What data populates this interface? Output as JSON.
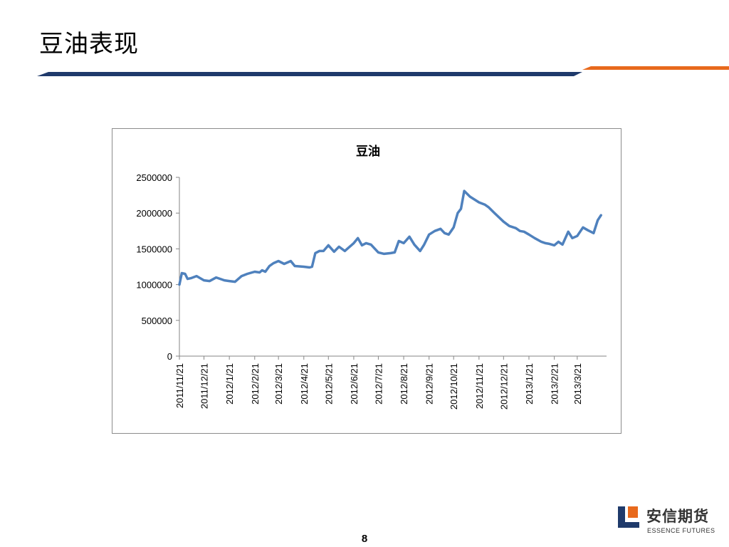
{
  "slide": {
    "title": "豆油表现",
    "page_number": "8",
    "colors": {
      "navy": "#1f3a6b",
      "orange": "#e8691c",
      "series": "#4f81bd"
    }
  },
  "logo": {
    "name": "安信期货",
    "subtitle": "ESSENCE FUTURES"
  },
  "chart_data": {
    "type": "line",
    "title": "豆油",
    "xlabel": "",
    "ylabel": "",
    "ylim": [
      0,
      2500000
    ],
    "y_ticks": [
      "0",
      "500000",
      "1000000",
      "1500000",
      "2000000",
      "2500000"
    ],
    "x_ticks": [
      "2011/11/21",
      "2011/12/21",
      "2012/1/21",
      "2012/2/21",
      "2012/3/21",
      "2012/4/21",
      "2012/5/21",
      "2012/6/21",
      "2012/7/21",
      "2012/8/21",
      "2012/9/21",
      "2012/10/21",
      "2012/11/21",
      "2012/12/21",
      "2013/1/21",
      "2013/2/21",
      "2013/3/21"
    ],
    "grid": false,
    "legend": "none",
    "series": [
      {
        "color": "#4f81bd",
        "x": [
          "2011/11/21",
          "2011/11/24",
          "2011/11/28",
          "2011/12/1",
          "2011/12/5",
          "2011/12/12",
          "2011/12/21",
          "2011/12/28",
          "2012/1/5",
          "2012/1/10",
          "2012/1/15",
          "2012/1/21",
          "2012/1/28",
          "2012/2/5",
          "2012/2/12",
          "2012/2/21",
          "2012/2/27",
          "2012/3/1",
          "2012/3/5",
          "2012/3/10",
          "2012/3/15",
          "2012/3/21",
          "2012/3/28",
          "2012/4/5",
          "2012/4/10",
          "2012/4/21",
          "2012/4/28",
          "2012/5/1",
          "2012/5/5",
          "2012/5/10",
          "2012/5/15",
          "2012/5/21",
          "2012/5/28",
          "2012/6/3",
          "2012/6/10",
          "2012/6/15",
          "2012/6/21",
          "2012/6/26",
          "2012/7/1",
          "2012/7/6",
          "2012/7/12",
          "2012/7/21",
          "2012/7/28",
          "2012/8/5",
          "2012/8/10",
          "2012/8/15",
          "2012/8/21",
          "2012/8/28",
          "2012/9/3",
          "2012/9/10",
          "2012/9/15",
          "2012/9/21",
          "2012/9/28",
          "2012/10/5",
          "2012/10/10",
          "2012/10/15",
          "2012/10/21",
          "2012/10/26",
          "2012/10/30",
          "2012/11/3",
          "2012/11/10",
          "2012/11/21",
          "2012/11/28",
          "2012/12/3",
          "2012/12/10",
          "2012/12/21",
          "2012/12/28",
          "2013/1/5",
          "2013/1/10",
          "2013/1/15",
          "2013/1/21",
          "2013/1/28",
          "2013/2/5",
          "2013/2/10",
          "2013/2/15",
          "2013/2/21",
          "2013/2/26",
          "2013/3/3",
          "2013/3/10",
          "2013/3/15",
          "2013/3/21",
          "2013/3/28",
          "2013/4/3",
          "2013/4/10",
          "2013/4/15",
          "2013/4/19"
        ],
        "values": [
          1000000,
          1160000,
          1150000,
          1080000,
          1090000,
          1120000,
          1060000,
          1050000,
          1100000,
          1080000,
          1060000,
          1050000,
          1040000,
          1120000,
          1150000,
          1180000,
          1170000,
          1200000,
          1180000,
          1260000,
          1300000,
          1330000,
          1290000,
          1330000,
          1260000,
          1250000,
          1240000,
          1250000,
          1440000,
          1470000,
          1470000,
          1550000,
          1460000,
          1530000,
          1470000,
          1520000,
          1580000,
          1650000,
          1550000,
          1580000,
          1560000,
          1450000,
          1430000,
          1440000,
          1450000,
          1610000,
          1580000,
          1670000,
          1560000,
          1470000,
          1560000,
          1700000,
          1750000,
          1780000,
          1720000,
          1700000,
          1800000,
          2000000,
          2060000,
          2310000,
          2230000,
          2150000,
          2120000,
          2080000,
          2000000,
          1880000,
          1820000,
          1790000,
          1750000,
          1740000,
          1700000,
          1650000,
          1600000,
          1580000,
          1570000,
          1550000,
          1600000,
          1560000,
          1740000,
          1650000,
          1680000,
          1800000,
          1760000,
          1720000,
          1900000,
          1970000
        ]
      }
    ]
  }
}
